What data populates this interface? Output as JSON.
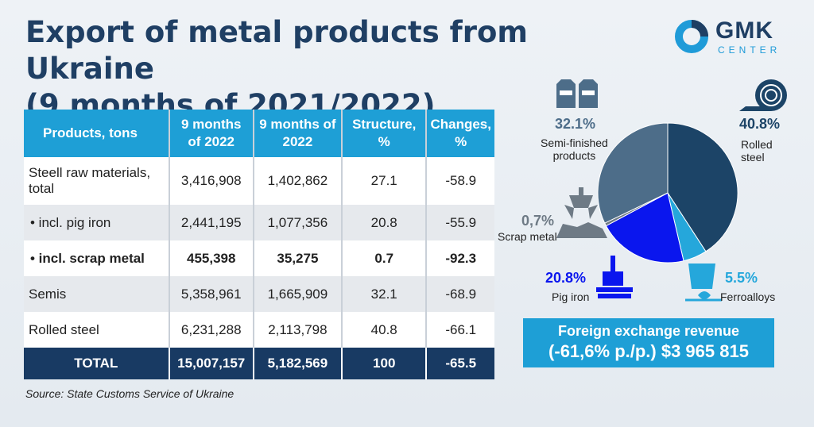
{
  "title_line1": "Export of metal products from Ukraine",
  "title_line2": "(9 months of 2021/2022)",
  "logo": {
    "name": "GMK",
    "sub": "CENTER",
    "color": "#1f9bd8"
  },
  "table": {
    "headers": [
      "Products, tons",
      "9 months of 2022",
      "9 months of 2022",
      "Structure, %",
      "Changes, %"
    ],
    "rows": [
      [
        "Steell raw materials, total",
        "3,416,908",
        "1,402,862",
        "27.1",
        "-58.9"
      ],
      [
        "• incl. pig iron",
        "2,441,195",
        "1,077,356",
        "20.8",
        "-55.9"
      ],
      [
        "• incl. scrap metal",
        "455,398",
        "35,275",
        "0.7",
        "-92.3"
      ],
      [
        "Semis",
        "5,358,961",
        "1,665,909",
        "32.1",
        "-68.9"
      ],
      [
        "Rolled steel",
        "6,231,288",
        "2,113,798",
        "40.8",
        "-66.1"
      ]
    ],
    "total": [
      "TOTAL",
      "15,007,157",
      "5,182,569",
      "100",
      "-65.5"
    ]
  },
  "source": "Source: State Customs Service of Ukraine",
  "chart_data": {
    "type": "pie",
    "slices": [
      {
        "name": "Rolled steel",
        "pct_label": "40.8%",
        "value": 40.8,
        "color": "#1c4467"
      },
      {
        "name": "Ferroalloys",
        "pct_label": "5.5%",
        "value": 5.5,
        "color": "#25a7db"
      },
      {
        "name": "Pig iron",
        "pct_label": "20.8%",
        "value": 20.8,
        "color": "#0a16ee"
      },
      {
        "name": "Scrap metal",
        "pct_label": "0,7%",
        "value": 0.7,
        "color": "#6e7a85"
      },
      {
        "name": "Semi-finished products",
        "pct_label": "32.1%",
        "value": 32.1,
        "color": "#4d6d89"
      }
    ]
  },
  "labels": {
    "semi_line1": "Semi-finished",
    "semi_line2": "products",
    "rolled_line1": "Rolled",
    "rolled_line2": "steel"
  },
  "revenue": {
    "line1": "Foreign exchange revenue",
    "line2": "(-61,6% p./p.) $3 965 815"
  }
}
